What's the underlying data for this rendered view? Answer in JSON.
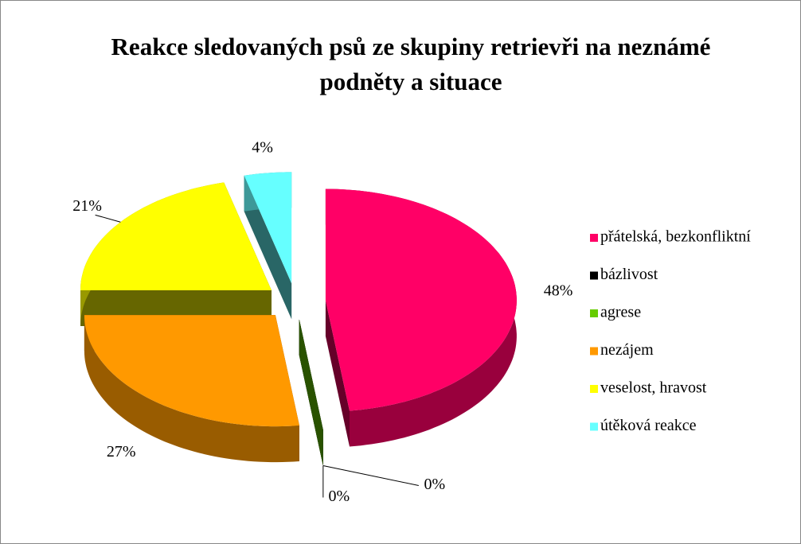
{
  "chart_data": {
    "type": "pie",
    "title": "Reakce sledovaných psů ze skupiny retrievři na neznámé podněty a situace",
    "categories": [
      "přátelská, bezkonfliktní",
      "bázlivost",
      "agrese",
      "nezájem",
      "veselost, hravost",
      "útěková reakce"
    ],
    "values": [
      48,
      0,
      0,
      27,
      21,
      4
    ],
    "value_labels": [
      "48%",
      "0%",
      "0%",
      "27%",
      "21%",
      "4%"
    ],
    "colors": [
      "#ff0066",
      "#000000",
      "#66cc00",
      "#ff9900",
      "#ffff00",
      "#66ffff"
    ],
    "legend": "right"
  }
}
